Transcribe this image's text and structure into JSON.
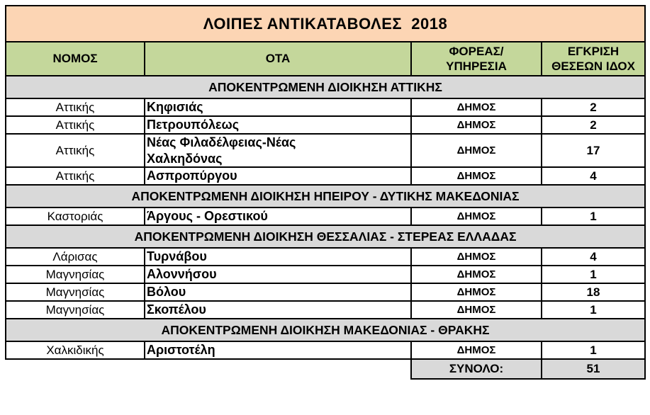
{
  "page_title": "ΛΟΙΠΕΣ ΑΝΤΙΚΑΤΑΒΟΛΕΣ  2018",
  "columns": [
    {
      "key": "nomos",
      "label": "ΝΟΜΟΣ"
    },
    {
      "key": "ota",
      "label": "ΟΤΑ"
    },
    {
      "key": "foreas",
      "label": "ΦΟΡΕΑΣ/\nΥΠΗΡΕΣΙΑ"
    },
    {
      "key": "egkrisi",
      "label": "ΕΓΚΡΙΣΗ\nΘΕΣΕΩΝ ΙΔΟΧ"
    }
  ],
  "rows": [
    {
      "type": "section",
      "label": "ΑΠΟΚΕΝΤΡΩΜΕΝΗ ΔΙΟΙΚΗΣΗ ΑΤΤΙΚΗΣ"
    },
    {
      "type": "data",
      "nomos": "Αττικής",
      "ota": "Κηφισιάς",
      "foreas": "ΔΗΜΟΣ",
      "egkrisi": "2"
    },
    {
      "type": "data",
      "nomos": "Αττικής",
      "ota": "Πετρουπόλεως",
      "foreas": "ΔΗΜΟΣ",
      "egkrisi": "2"
    },
    {
      "type": "data",
      "nomos": "Αττικής",
      "ota": "Νέας Φιλαδέλφειας-Νέας Χαλκηδόνας",
      "foreas": "ΔΗΜΟΣ",
      "egkrisi": "17"
    },
    {
      "type": "data",
      "nomos": "Αττικής",
      "ota": "Ασπροπύργου",
      "foreas": "ΔΗΜΟΣ",
      "egkrisi": "4"
    },
    {
      "type": "section",
      "label": "ΑΠΟΚΕΝΤΡΩΜΕΝΗ ΔΙΟΙΚΗΣΗ ΗΠΕΙΡΟΥ - ΔΥΤΙΚΗΣ ΜΑΚΕΔΟΝΙΑΣ"
    },
    {
      "type": "data",
      "nomos": "Καστοριάς",
      "ota": "Άργους - Ορεστικού",
      "foreas": "ΔΗΜΟΣ",
      "egkrisi": "1"
    },
    {
      "type": "section",
      "label": "ΑΠΟΚΕΝΤΡΩΜΕΝΗ ΔΙΟΙΚΗΣΗ ΘΕΣΣΑΛΙΑΣ - ΣΤΕΡΕΑΣ ΕΛΛΑΔΑΣ"
    },
    {
      "type": "data",
      "nomos": "Λάρισας",
      "ota": "Τυρνάβου",
      "foreas": "ΔΗΜΟΣ",
      "egkrisi": "4"
    },
    {
      "type": "data",
      "nomos": "Μαγνησίας",
      "ota": "Αλοννήσου",
      "foreas": "ΔΗΜΟΣ",
      "egkrisi": "1"
    },
    {
      "type": "data",
      "nomos": "Μαγνησίας",
      "ota": "Βόλου",
      "foreas": "ΔΗΜΟΣ",
      "egkrisi": "18"
    },
    {
      "type": "data",
      "nomos": "Μαγνησίας",
      "ota": "Σκοπέλου",
      "foreas": "ΔΗΜΟΣ",
      "egkrisi": "1"
    },
    {
      "type": "section",
      "label": "ΑΠΟΚΕΝΤΡΩΜΕΝΗ ΔΙΟΙΚΗΣΗ ΜΑΚΕΔΟΝΙΑΣ - ΘΡΑΚΗΣ"
    },
    {
      "type": "data",
      "nomos": "Χαλκιδικής",
      "ota": "Αριστοτέλη",
      "foreas": "ΔΗΜΟΣ",
      "egkrisi": "1"
    }
  ],
  "total": {
    "label": "ΣΥΝΟΛΟ:",
    "value": "51"
  },
  "colors": {
    "title_bg": "#fcd5b4",
    "header_bg": "#c4d79b",
    "section_bg": "#d9d9d9",
    "total_bg": "#d9d9d9",
    "border": "#000000",
    "text": "#000000",
    "page_bg": "#ffffff"
  }
}
